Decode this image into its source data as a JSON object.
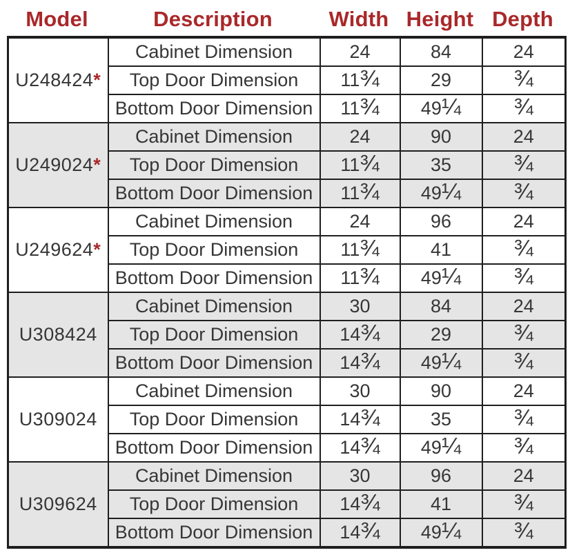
{
  "colors": {
    "header_text": "#A9282A",
    "asterisk": "#A9282A",
    "alt_row_background": "#E5E5E5",
    "border": "#1E1E1E",
    "body_text": "#363636"
  },
  "header": {
    "columns": {
      "model": "Model",
      "description": "Description",
      "width": "Width",
      "height": "Height",
      "depth": "Depth"
    }
  },
  "table": {
    "groups": [
      {
        "model": "U248424",
        "star": "*",
        "rows": [
          {
            "description": "Cabinet Dimension",
            "width": "24",
            "height": "84",
            "depth": "24"
          },
          {
            "description": "Top Door Dimension",
            "width": "11¾",
            "height": "29",
            "depth": "¾"
          },
          {
            "description": "Bottom Door Dimension",
            "width": "11¾",
            "height": "49¼",
            "depth": "¾"
          }
        ]
      },
      {
        "model": "U249024",
        "star": "*",
        "rows": [
          {
            "description": "Cabinet Dimension",
            "width": "24",
            "height": "90",
            "depth": "24"
          },
          {
            "description": "Top Door Dimension",
            "width": "11¾",
            "height": "35",
            "depth": "¾"
          },
          {
            "description": "Bottom Door Dimension",
            "width": "11¾",
            "height": "49¼",
            "depth": "¾"
          }
        ]
      },
      {
        "model": "U249624",
        "star": "*",
        "rows": [
          {
            "description": "Cabinet Dimension",
            "width": "24",
            "height": "96",
            "depth": "24"
          },
          {
            "description": "Top Door Dimension",
            "width": "11¾",
            "height": "41",
            "depth": "¾"
          },
          {
            "description": "Bottom Door Dimension",
            "width": "11¾",
            "height": "49¼",
            "depth": "¾"
          }
        ]
      },
      {
        "model": "U308424",
        "star": "",
        "rows": [
          {
            "description": "Cabinet Dimension",
            "width": "30",
            "height": "84",
            "depth": "24"
          },
          {
            "description": "Top Door Dimension",
            "width": "14¾",
            "height": "29",
            "depth": "¾"
          },
          {
            "description": "Bottom Door Dimension",
            "width": "14¾",
            "height": "49¼",
            "depth": "¾"
          }
        ]
      },
      {
        "model": "U309024",
        "star": "",
        "rows": [
          {
            "description": "Cabinet Dimension",
            "width": "30",
            "height": "90",
            "depth": "24"
          },
          {
            "description": "Top Door Dimension",
            "width": "14¾",
            "height": "35",
            "depth": "¾"
          },
          {
            "description": "Bottom Door Dimension",
            "width": "14¾",
            "height": "49¼",
            "depth": "¾"
          }
        ]
      },
      {
        "model": "U309624",
        "star": "",
        "rows": [
          {
            "description": "Cabinet Dimension",
            "width": "30",
            "height": "96",
            "depth": "24"
          },
          {
            "description": "Top Door Dimension",
            "width": "14¾",
            "height": "41",
            "depth": "¾"
          },
          {
            "description": "Bottom Door Dimension",
            "width": "14¾",
            "height": "49¼",
            "depth": "¾"
          }
        ]
      }
    ]
  }
}
